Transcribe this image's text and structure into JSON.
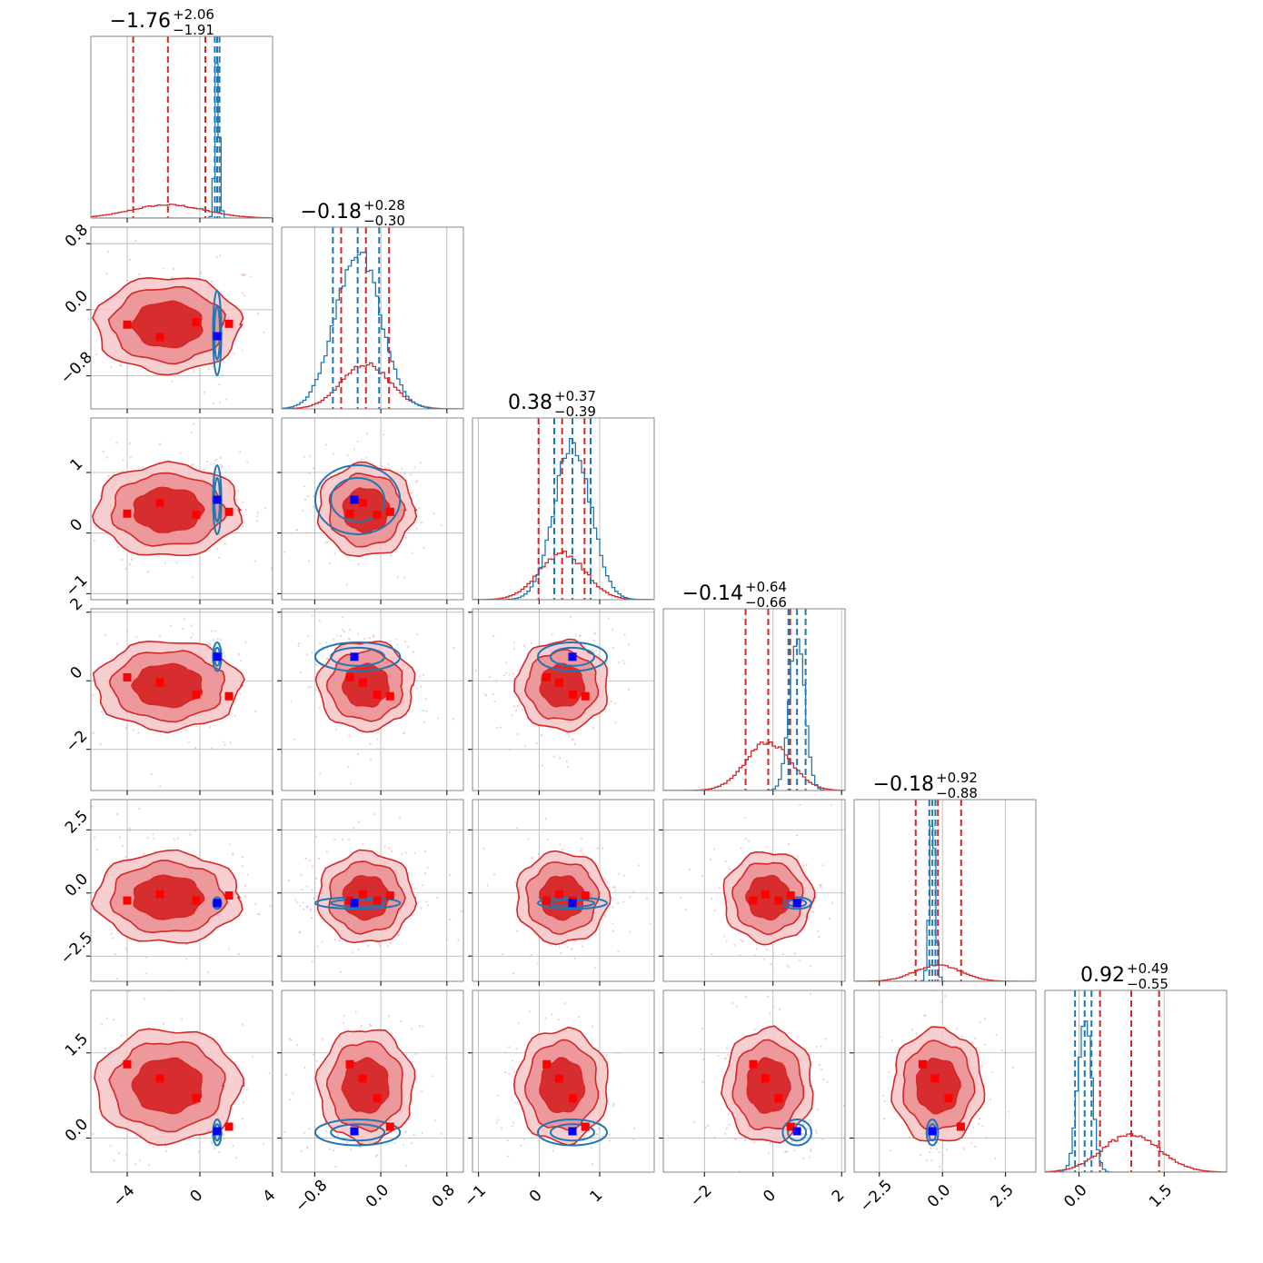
{
  "chart_data": {
    "type": "corner",
    "n_params": 6,
    "colors": {
      "primary": "#d62728",
      "secondary": "#1f77b4",
      "marker_primary": "#ff0000",
      "marker_secondary": "#0000ff",
      "grid": "#b0b0b0"
    },
    "params": [
      {
        "range": [
          -6,
          4
        ],
        "ticks": [
          -4,
          0,
          4
        ],
        "tick_labels": [
          "−4",
          "0",
          "4"
        ],
        "tick_rotate": true,
        "title_value": "−1.76",
        "title_plus": "+2.06",
        "title_minus": "−1.91",
        "red": {
          "mean": -1.76,
          "sd": 2.0,
          "quantiles": [
            -3.67,
            -1.76,
            0.3
          ]
        },
        "blue": {
          "mean": 0.95,
          "sd": 0.12,
          "quantiles": [
            0.82,
            0.95,
            1.08
          ]
        }
      },
      {
        "range": [
          -1.2,
          1.0
        ],
        "ticks": [
          -0.8,
          0.0,
          0.8
        ],
        "tick_labels": [
          "−0.8",
          "0.0",
          "0.8"
        ],
        "tick_rotate": true,
        "title_value": "−0.18",
        "title_plus": "+0.28",
        "title_minus": "−0.30",
        "red": {
          "mean": -0.18,
          "sd": 0.29,
          "quantiles": [
            -0.48,
            -0.18,
            0.1
          ]
        },
        "blue": {
          "mean": -0.28,
          "sd": 0.27,
          "quantiles": [
            -0.58,
            -0.28,
            -0.02
          ]
        }
      },
      {
        "range": [
          -1.1,
          1.9
        ],
        "ticks": [
          -1,
          0,
          1
        ],
        "tick_labels": [
          "−1",
          "0",
          "1"
        ],
        "tick_rotate": true,
        "title_value": "0.38",
        "title_plus": "+0.37",
        "title_minus": "−0.39",
        "red": {
          "mean": 0.38,
          "sd": 0.38,
          "quantiles": [
            -0.01,
            0.38,
            0.75
          ]
        },
        "blue": {
          "mean": 0.55,
          "sd": 0.3,
          "quantiles": [
            0.25,
            0.55,
            0.85
          ]
        }
      },
      {
        "range": [
          -3.2,
          2.1
        ],
        "ticks": [
          -2,
          0,
          2
        ],
        "tick_labels": [
          "−2",
          "0",
          "2"
        ],
        "tick_rotate": true,
        "title_value": "−0.14",
        "title_plus": "+0.64",
        "title_minus": "−0.66",
        "red": {
          "mean": -0.14,
          "sd": 0.65,
          "quantiles": [
            -0.8,
            -0.14,
            0.5
          ]
        },
        "blue": {
          "mean": 0.7,
          "sd": 0.22,
          "quantiles": [
            0.45,
            0.7,
            0.95
          ]
        }
      },
      {
        "range": [
          -3.5,
          3.7
        ],
        "ticks": [
          -2.5,
          0.0,
          2.5
        ],
        "tick_labels": [
          "−2.5",
          "0.0",
          "2.5"
        ],
        "tick_rotate": true,
        "title_value": "−0.18",
        "title_plus": "+0.92",
        "title_minus": "−0.88",
        "red": {
          "mean": -0.18,
          "sd": 0.9,
          "quantiles": [
            -1.06,
            -0.18,
            0.74
          ]
        },
        "blue": {
          "mean": -0.4,
          "sd": 0.12,
          "quantiles": [
            -0.52,
            -0.4,
            -0.28
          ]
        }
      },
      {
        "range": [
          -0.6,
          2.6
        ],
        "ticks": [
          0.0,
          1.5
        ],
        "tick_labels": [
          "0.0",
          "1.5"
        ],
        "tick_rotate": true,
        "title_value": "0.92",
        "title_plus": "+0.49",
        "title_minus": "−0.55",
        "red": {
          "mean": 0.92,
          "sd": 0.5,
          "quantiles": [
            0.37,
            0.92,
            1.41
          ]
        },
        "blue": {
          "mean": 0.1,
          "sd": 0.12,
          "quantiles": [
            -0.07,
            0.1,
            0.22
          ]
        }
      }
    ],
    "y_ticks": [
      null,
      {
        "ticks": [
          0.8,
          0.0,
          -0.8
        ],
        "tick_labels": [
          "0.8",
          "0.0",
          "−0.8"
        ],
        "range": [
          -1.2,
          1.0
        ]
      },
      {
        "ticks": [
          1,
          0,
          -1
        ],
        "tick_labels": [
          "1",
          "0",
          "−1"
        ],
        "range": [
          -1.1,
          1.9
        ]
      },
      {
        "ticks": [
          2,
          0,
          -2
        ],
        "tick_labels": [
          "2",
          "0",
          "−2"
        ],
        "range": [
          -3.2,
          2.1
        ]
      },
      {
        "ticks": [
          2.5,
          0.0,
          -2.5
        ],
        "tick_labels": [
          "2.5",
          "0.0",
          "−2.5"
        ],
        "range": [
          -3.5,
          3.7
        ]
      },
      {
        "ticks": [
          1.5,
          0.0
        ],
        "tick_labels": [
          "1.5",
          "0.0"
        ],
        "range": [
          -0.6,
          2.6
        ]
      }
    ],
    "red_markers": [
      {
        "x": -4.0,
        "y": [
          -0.18,
          0.32,
          0.1,
          -0.3,
          1.3
        ]
      },
      {
        "x": -2.2,
        "y": [
          -0.33,
          0.5,
          -0.05,
          -0.05,
          1.05
        ]
      },
      {
        "x": -0.2,
        "y": [
          -0.15,
          0.3,
          -0.4,
          -0.3,
          0.7
        ]
      },
      {
        "x": 1.6,
        "y": [
          -0.17,
          0.35,
          -0.45,
          -0.1,
          0.2
        ]
      }
    ],
    "blue_marker": [
      0.95,
      -0.32,
      0.55,
      0.7,
      -0.4,
      0.12
    ]
  }
}
